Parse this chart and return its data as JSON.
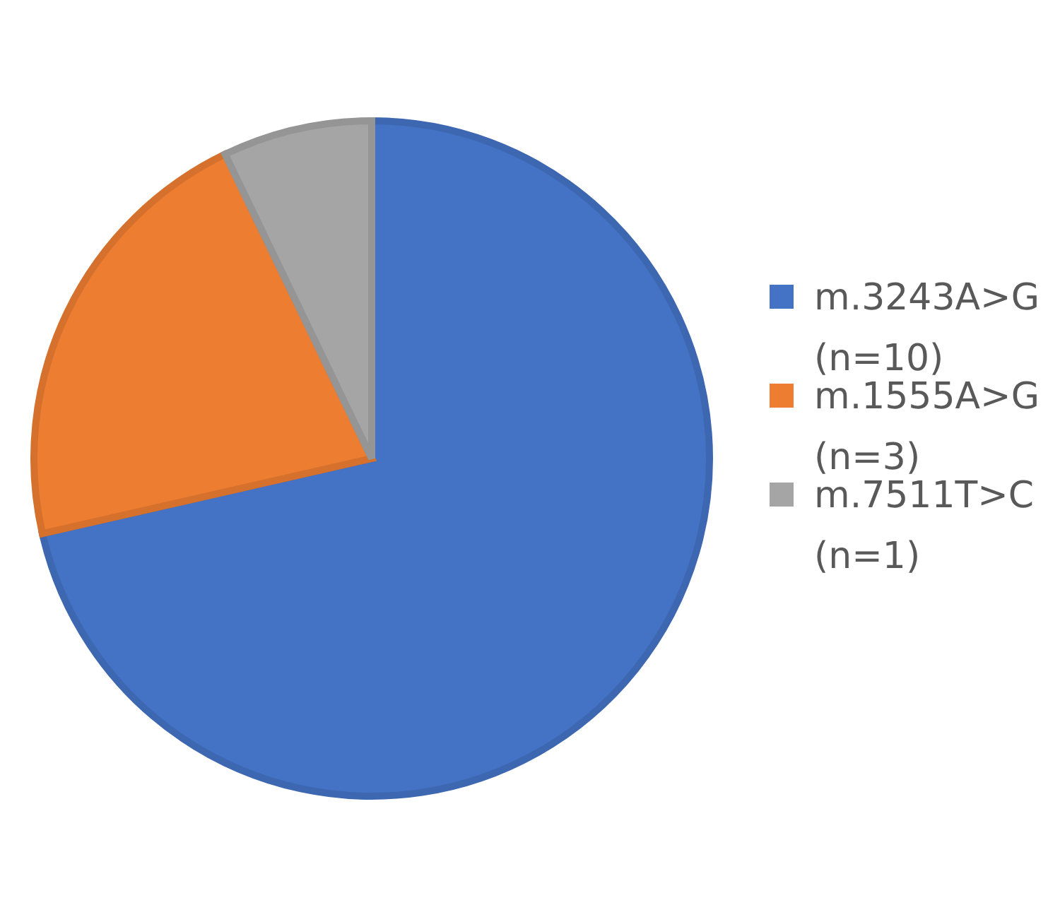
{
  "chart_data": {
    "type": "pie",
    "categories": [
      "m.3243A>G (n=10)",
      "m.1555A>G (n=3)",
      "m.7511T>C (n=1)"
    ],
    "values": [
      10,
      3,
      1
    ],
    "colors": [
      "#4472c4",
      "#ed7d31",
      "#a5a5a5"
    ],
    "legend": "right"
  }
}
